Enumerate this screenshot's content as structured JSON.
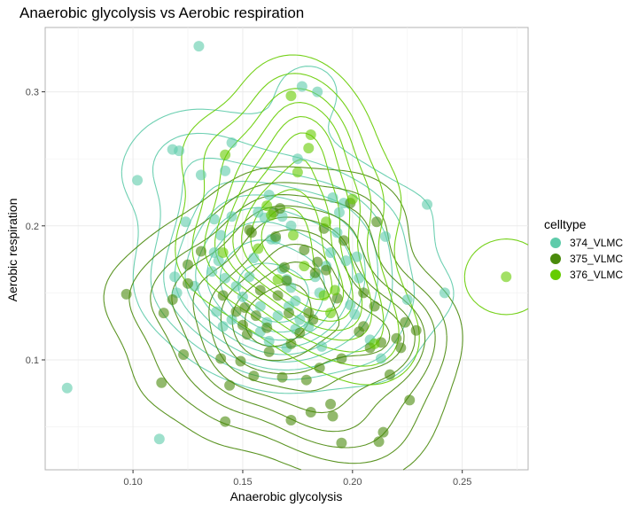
{
  "chart_data": {
    "type": "scatter",
    "title": "Anaerobic glycolysis vs Aerobic respiration",
    "xlabel": "Anaerobic glycolysis",
    "ylabel": "Aerobic respiration",
    "xlim": [
      0.06,
      0.28
    ],
    "ylim": [
      0.018,
      0.348
    ],
    "x_ticks": [
      0.1,
      0.15,
      0.2,
      0.25
    ],
    "x_tick_labels": [
      "0.10",
      "0.15",
      "0.20",
      "0.25"
    ],
    "y_ticks": [
      0.1,
      0.2,
      0.3
    ],
    "y_tick_labels": [
      "0.1",
      "0.2",
      "0.3"
    ],
    "grid": true,
    "legend_title": "celltype",
    "legend_position": "right",
    "overlay": "2d density contours per series",
    "series": [
      {
        "name": "374_VLMC",
        "color": "#5ECBAA",
        "points": [
          [
            0.07,
            0.079
          ],
          [
            0.112,
            0.041
          ],
          [
            0.13,
            0.334
          ],
          [
            0.102,
            0.234
          ],
          [
            0.118,
            0.257
          ],
          [
            0.121,
            0.256
          ],
          [
            0.131,
            0.238
          ],
          [
            0.145,
            0.262
          ],
          [
            0.142,
            0.241
          ],
          [
            0.124,
            0.203
          ],
          [
            0.119,
            0.162
          ],
          [
            0.12,
            0.15
          ],
          [
            0.128,
            0.155
          ],
          [
            0.137,
            0.18
          ],
          [
            0.139,
            0.174
          ],
          [
            0.14,
            0.193
          ],
          [
            0.137,
            0.205
          ],
          [
            0.145,
            0.207
          ],
          [
            0.136,
            0.166
          ],
          [
            0.142,
            0.161
          ],
          [
            0.147,
            0.155
          ],
          [
            0.153,
            0.162
          ],
          [
            0.155,
            0.176
          ],
          [
            0.157,
            0.21
          ],
          [
            0.16,
            0.206
          ],
          [
            0.162,
            0.223
          ],
          [
            0.163,
            0.19
          ],
          [
            0.165,
            0.19
          ],
          [
            0.168,
            0.207
          ],
          [
            0.172,
            0.2
          ],
          [
            0.168,
            0.168
          ],
          [
            0.17,
            0.16
          ],
          [
            0.172,
            0.154
          ],
          [
            0.174,
            0.144
          ],
          [
            0.176,
            0.13
          ],
          [
            0.171,
            0.14
          ],
          [
            0.166,
            0.133
          ],
          [
            0.161,
            0.128
          ],
          [
            0.158,
            0.14
          ],
          [
            0.15,
            0.147
          ],
          [
            0.145,
            0.13
          ],
          [
            0.141,
            0.125
          ],
          [
            0.138,
            0.136
          ],
          [
            0.158,
            0.121
          ],
          [
            0.162,
            0.114
          ],
          [
            0.17,
            0.109
          ],
          [
            0.174,
            0.123
          ],
          [
            0.18,
            0.125
          ],
          [
            0.185,
            0.15
          ],
          [
            0.188,
            0.17
          ],
          [
            0.19,
            0.18
          ],
          [
            0.194,
            0.21
          ],
          [
            0.196,
            0.217
          ],
          [
            0.191,
            0.221
          ],
          [
            0.193,
            0.195
          ],
          [
            0.197,
            0.174
          ],
          [
            0.202,
            0.177
          ],
          [
            0.203,
            0.161
          ],
          [
            0.199,
            0.141
          ],
          [
            0.201,
            0.134
          ],
          [
            0.208,
            0.115
          ],
          [
            0.213,
            0.101
          ],
          [
            0.215,
            0.192
          ],
          [
            0.234,
            0.216
          ],
          [
            0.242,
            0.15
          ],
          [
            0.225,
            0.145
          ],
          [
            0.177,
            0.304
          ],
          [
            0.184,
            0.3
          ],
          [
            0.175,
            0.25
          ],
          [
            0.183,
            0.162
          ],
          [
            0.186,
            0.11
          ]
        ]
      },
      {
        "name": "375_VLMC",
        "color": "#4A8A0C",
        "points": [
          [
            0.097,
            0.149
          ],
          [
            0.113,
            0.083
          ],
          [
            0.114,
            0.135
          ],
          [
            0.118,
            0.145
          ],
          [
            0.123,
            0.104
          ],
          [
            0.125,
            0.171
          ],
          [
            0.125,
            0.157
          ],
          [
            0.131,
            0.181
          ],
          [
            0.14,
            0.101
          ],
          [
            0.142,
            0.054
          ],
          [
            0.144,
            0.081
          ],
          [
            0.147,
            0.136
          ],
          [
            0.149,
            0.099
          ],
          [
            0.15,
            0.126
          ],
          [
            0.151,
            0.139
          ],
          [
            0.152,
            0.119
          ],
          [
            0.153,
            0.197
          ],
          [
            0.154,
            0.195
          ],
          [
            0.156,
            0.133
          ],
          [
            0.158,
            0.152
          ],
          [
            0.161,
            0.124
          ],
          [
            0.162,
            0.106
          ],
          [
            0.164,
            0.21
          ],
          [
            0.165,
            0.192
          ],
          [
            0.166,
            0.148
          ],
          [
            0.167,
            0.213
          ],
          [
            0.168,
            0.087
          ],
          [
            0.169,
            0.169
          ],
          [
            0.17,
            0.159
          ],
          [
            0.171,
            0.135
          ],
          [
            0.172,
            0.112
          ],
          [
            0.172,
            0.055
          ],
          [
            0.178,
            0.182
          ],
          [
            0.179,
            0.085
          ],
          [
            0.18,
            0.135
          ],
          [
            0.181,
            0.061
          ],
          [
            0.182,
            0.13
          ],
          [
            0.183,
            0.165
          ],
          [
            0.184,
            0.173
          ],
          [
            0.185,
            0.094
          ],
          [
            0.187,
            0.198
          ],
          [
            0.188,
            0.167
          ],
          [
            0.19,
            0.067
          ],
          [
            0.191,
            0.058
          ],
          [
            0.193,
            0.146
          ],
          [
            0.195,
            0.101
          ],
          [
            0.195,
            0.038
          ],
          [
            0.196,
            0.189
          ],
          [
            0.199,
            0.217
          ],
          [
            0.203,
            0.121
          ],
          [
            0.205,
            0.125
          ],
          [
            0.208,
            0.109
          ],
          [
            0.21,
            0.14
          ],
          [
            0.211,
            0.203
          ],
          [
            0.212,
            0.039
          ],
          [
            0.213,
            0.113
          ],
          [
            0.214,
            0.046
          ],
          [
            0.217,
            0.089
          ],
          [
            0.22,
            0.116
          ],
          [
            0.222,
            0.109
          ],
          [
            0.224,
            0.128
          ],
          [
            0.226,
            0.07
          ],
          [
            0.229,
            0.122
          ],
          [
            0.205,
            0.15
          ],
          [
            0.176,
            0.12
          ],
          [
            0.155,
            0.088
          ],
          [
            0.141,
            0.148
          ]
        ]
      },
      {
        "name": "376_VLMC",
        "color": "#66CC00",
        "points": [
          [
            0.172,
            0.297
          ],
          [
            0.181,
            0.268
          ],
          [
            0.18,
            0.258
          ],
          [
            0.175,
            0.24
          ],
          [
            0.142,
            0.253
          ],
          [
            0.161,
            0.215
          ],
          [
            0.163,
            0.208
          ],
          [
            0.173,
            0.193
          ],
          [
            0.188,
            0.203
          ],
          [
            0.192,
            0.152
          ],
          [
            0.187,
            0.148
          ],
          [
            0.141,
            0.18
          ],
          [
            0.21,
            0.112
          ],
          [
            0.27,
            0.162
          ],
          [
            0.178,
            0.17
          ],
          [
            0.166,
            0.16
          ],
          [
            0.2,
            0.22
          ],
          [
            0.19,
            0.135
          ],
          [
            0.157,
            0.183
          ]
        ]
      }
    ]
  }
}
